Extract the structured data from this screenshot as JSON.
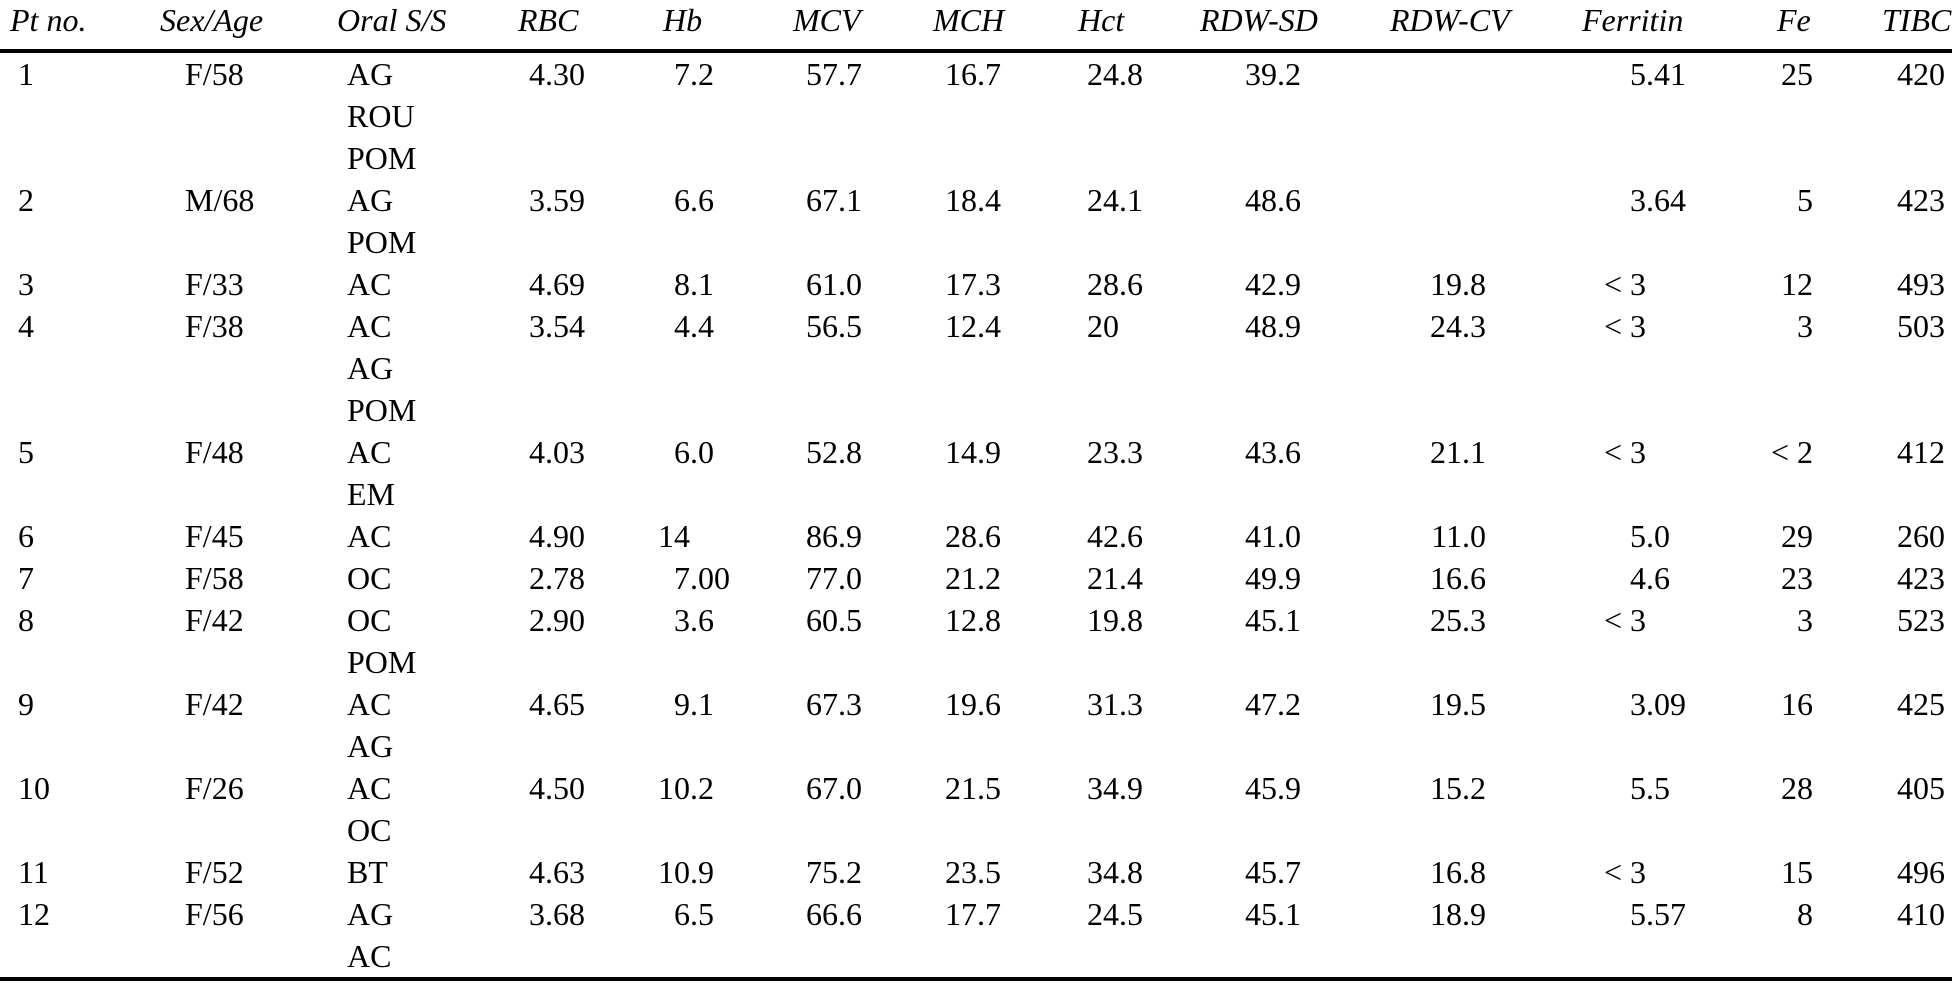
{
  "colors": {
    "text": "#000000",
    "rule": "#000000",
    "background": "#ffffff"
  },
  "table": {
    "columns": [
      {
        "key": "pt",
        "label": "Pt no.",
        "type": "text"
      },
      {
        "key": "sexAge",
        "label": "Sex/Age",
        "type": "text"
      },
      {
        "key": "oral",
        "label": "Oral S/S",
        "type": "multiline"
      },
      {
        "key": "rbc",
        "label": "RBC",
        "type": "num"
      },
      {
        "key": "hb",
        "label": "Hb",
        "type": "num"
      },
      {
        "key": "mcv",
        "label": "MCV",
        "type": "num"
      },
      {
        "key": "mch",
        "label": "MCH",
        "type": "num"
      },
      {
        "key": "hct",
        "label": "Hct",
        "type": "num"
      },
      {
        "key": "rdwsd",
        "label": "RDW-SD",
        "type": "num"
      },
      {
        "key": "rdwcv",
        "label": "RDW-CV",
        "type": "num"
      },
      {
        "key": "ferritin",
        "label": "Ferritin",
        "type": "num"
      },
      {
        "key": "fe",
        "label": "Fe",
        "type": "num"
      },
      {
        "key": "tibc",
        "label": "TIBC",
        "type": "num"
      }
    ],
    "rows": [
      {
        "pt": "1",
        "sexAge": "F/58",
        "oral": [
          "AG",
          "ROU",
          "POM"
        ],
        "rbc": "4.30",
        "hb": "7.2",
        "mcv": "57.7",
        "mch": "16.7",
        "hct": "24.8",
        "rdwsd": "39.2",
        "rdwcv": "",
        "ferritin": "5.41",
        "fe": "25",
        "tibc": "420"
      },
      {
        "pt": "2",
        "sexAge": "M/68",
        "oral": [
          "AG",
          "POM"
        ],
        "rbc": "3.59",
        "hb": "6.6",
        "mcv": "67.1",
        "mch": "18.4",
        "hct": "24.1",
        "rdwsd": "48.6",
        "rdwcv": "",
        "ferritin": "3.64",
        "fe": "5",
        "tibc": "423"
      },
      {
        "pt": "3",
        "sexAge": "F/33",
        "oral": [
          "AC"
        ],
        "rbc": "4.69",
        "hb": "8.1",
        "mcv": "61.0",
        "mch": "17.3",
        "hct": "28.6",
        "rdwsd": "42.9",
        "rdwcv": "19.8",
        "ferritin": "< 3",
        "fe": "12",
        "tibc": "493"
      },
      {
        "pt": "4",
        "sexAge": "F/38",
        "oral": [
          "AC",
          "AG",
          "POM"
        ],
        "rbc": "3.54",
        "hb": "4.4",
        "mcv": "56.5",
        "mch": "12.4",
        "hct": "20",
        "rdwsd": "48.9",
        "rdwcv": "24.3",
        "ferritin": "< 3",
        "fe": "3",
        "tibc": "503"
      },
      {
        "pt": "5",
        "sexAge": "F/48",
        "oral": [
          "AC",
          "EM"
        ],
        "rbc": "4.03",
        "hb": "6.0",
        "mcv": "52.8",
        "mch": "14.9",
        "hct": "23.3",
        "rdwsd": "43.6",
        "rdwcv": "21.1",
        "ferritin": "< 3",
        "fe": "< 2",
        "tibc": "412"
      },
      {
        "pt": "6",
        "sexAge": "F/45",
        "oral": [
          "AC"
        ],
        "rbc": "4.90",
        "hb": "14",
        "mcv": "86.9",
        "mch": "28.6",
        "hct": "42.6",
        "rdwsd": "41.0",
        "rdwcv": "11.0",
        "ferritin": "5.0",
        "fe": "29",
        "tibc": "260"
      },
      {
        "pt": "7",
        "sexAge": "F/58",
        "oral": [
          "OC"
        ],
        "rbc": "2.78",
        "hb": "7.00",
        "mcv": "77.0",
        "mch": "21.2",
        "hct": "21.4",
        "rdwsd": "49.9",
        "rdwcv": "16.6",
        "ferritin": "4.6",
        "fe": "23",
        "tibc": "423"
      },
      {
        "pt": "8",
        "sexAge": "F/42",
        "oral": [
          "OC",
          "POM"
        ],
        "rbc": "2.90",
        "hb": "3.6",
        "mcv": "60.5",
        "mch": "12.8",
        "hct": "19.8",
        "rdwsd": "45.1",
        "rdwcv": "25.3",
        "ferritin": "< 3",
        "fe": "3",
        "tibc": "523"
      },
      {
        "pt": "9",
        "sexAge": "F/42",
        "oral": [
          "AC",
          "AG"
        ],
        "rbc": "4.65",
        "hb": "9.1",
        "mcv": "67.3",
        "mch": "19.6",
        "hct": "31.3",
        "rdwsd": "47.2",
        "rdwcv": "19.5",
        "ferritin": "3.09",
        "fe": "16",
        "tibc": "425"
      },
      {
        "pt": "10",
        "sexAge": "F/26",
        "oral": [
          "AC",
          "OC"
        ],
        "rbc": "4.50",
        "hb": "10.2",
        "mcv": "67.0",
        "mch": "21.5",
        "hct": "34.9",
        "rdwsd": "45.9",
        "rdwcv": "15.2",
        "ferritin": "5.5",
        "fe": "28",
        "tibc": "405"
      },
      {
        "pt": "11",
        "sexAge": "F/52",
        "oral": [
          "BT"
        ],
        "rbc": "4.63",
        "hb": "10.9",
        "mcv": "75.2",
        "mch": "23.5",
        "hct": "34.8",
        "rdwsd": "45.7",
        "rdwcv": "16.8",
        "ferritin": "< 3",
        "fe": "15",
        "tibc": "496"
      },
      {
        "pt": "12",
        "sexAge": "F/56",
        "oral": [
          "AG",
          "AC"
        ],
        "rbc": "3.68",
        "hb": "6.5",
        "mcv": "66.6",
        "mch": "17.7",
        "hct": "24.5",
        "rdwsd": "45.1",
        "rdwcv": "18.9",
        "ferritin": "5.57",
        "fe": "8",
        "tibc": "410"
      }
    ]
  }
}
